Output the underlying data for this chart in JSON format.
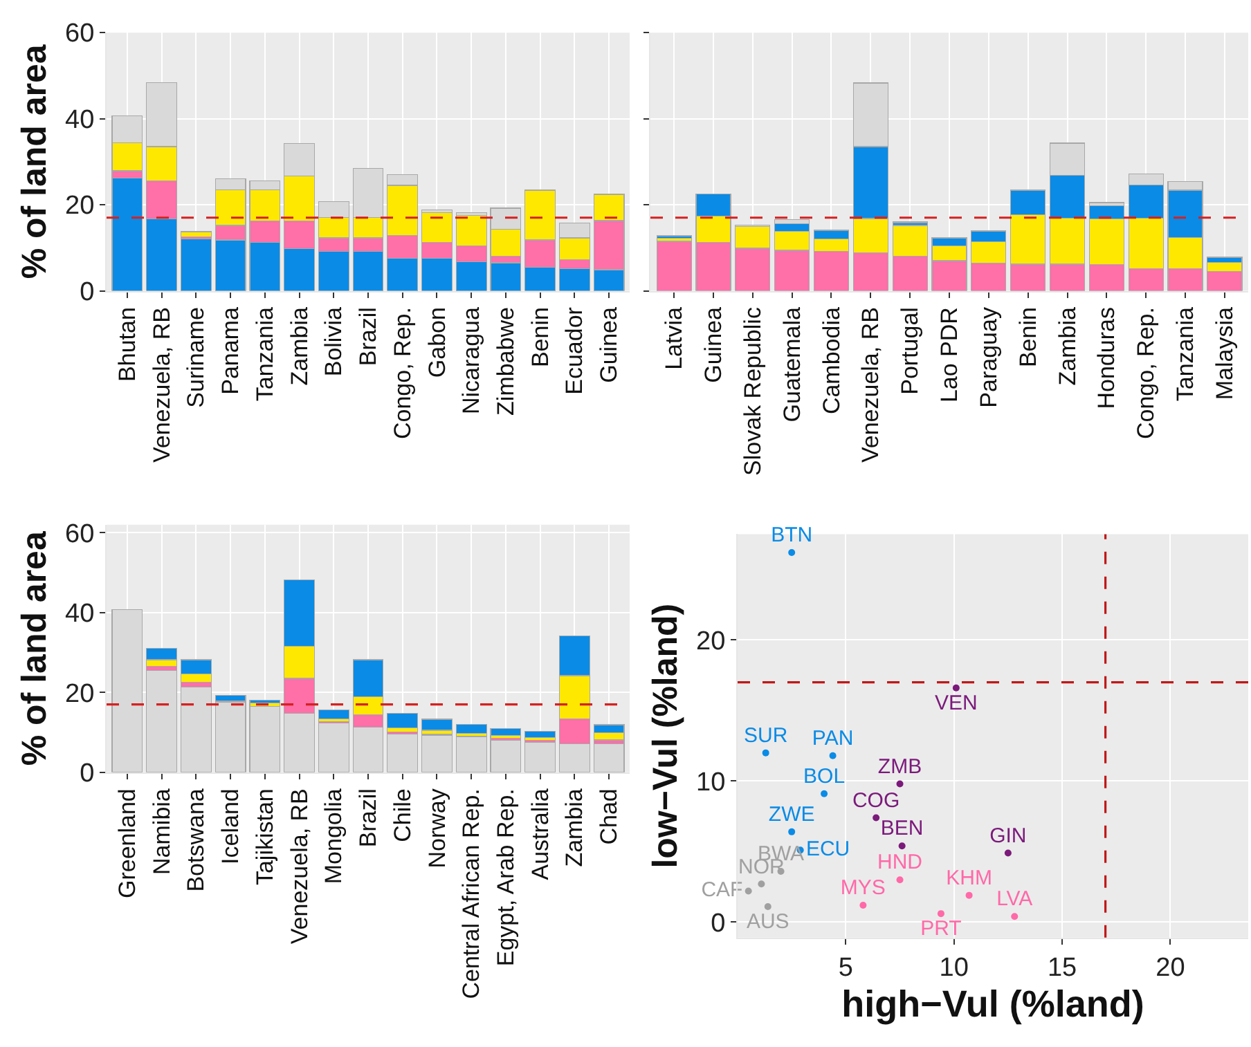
{
  "chart_data": [
    {
      "type": "bar",
      "stacked": true,
      "ylabel": "% of land area",
      "grid": true,
      "ylim": [
        0,
        60
      ],
      "yticks": [
        0,
        20,
        40,
        60
      ],
      "categories": [
        "Bhutan",
        "Venezuela, RB",
        "Suriname",
        "Panama",
        "Tanzania",
        "Zambia",
        "Bolivia",
        "Brazil",
        "Congo, Rep.",
        "Gabon",
        "Nicaragua",
        "Zimbabwe",
        "Benin",
        "Ecuador",
        "Guinea"
      ],
      "series": [
        {
          "color": "#0a8be6",
          "values": [
            26.2,
            16.7,
            12.0,
            11.8,
            11.2,
            9.8,
            9.2,
            9.2,
            7.5,
            7.5,
            6.8,
            6.5,
            5.5,
            5.1,
            4.9
          ]
        },
        {
          "color": "#ff6fa8",
          "values": [
            1.7,
            8.8,
            0.6,
            3.4,
            5.0,
            6.4,
            3.1,
            3.1,
            5.3,
            3.7,
            3.6,
            1.5,
            6.3,
            2.1,
            11.4
          ]
        },
        {
          "color": "#ffe800",
          "values": [
            6.5,
            8.0,
            1.0,
            8.3,
            7.3,
            10.5,
            4.8,
            4.8,
            11.7,
            7.0,
            7.1,
            6.3,
            11.5,
            5.1,
            6.1
          ]
        },
        {
          "color": "#d9d9d9",
          "values": [
            6.3,
            14.9,
            0.2,
            2.6,
            2.0,
            7.5,
            3.6,
            11.4,
            2.5,
            0.6,
            0.6,
            4.9,
            0.2,
            3.5,
            0.1
          ]
        }
      ],
      "ref_lines": [
        {
          "axis": "y",
          "value": 17,
          "color": "#d62020",
          "line_style": "dashed"
        }
      ]
    },
    {
      "type": "bar",
      "stacked": true,
      "grid": true,
      "ylim": [
        0,
        60
      ],
      "yticks": [
        {
          "value": 0,
          "label": null
        },
        {
          "value": 20,
          "label": null
        },
        {
          "value": 40,
          "label": null
        },
        {
          "value": 60,
          "label": null
        }
      ],
      "tick_labels": "x",
      "categories": [
        "Latvia",
        "Guinea",
        "Slovak Republic",
        "Guatemala",
        "Cambodia",
        "Venezuela, RB",
        "Portugal",
        "Lao PDR",
        "Paraguay",
        "Benin",
        "Zambia",
        "Honduras",
        "Congo, Rep.",
        "Tanzania",
        "Malaysia"
      ],
      "series": [
        {
          "color": "#ff6fa8",
          "values": [
            11.5,
            11.3,
            9.9,
            9.4,
            9.2,
            8.8,
            8.0,
            7.0,
            6.4,
            6.2,
            6.2,
            6.1,
            5.1,
            5.1,
            4.5
          ]
        },
        {
          "color": "#ffe800",
          "values": [
            0.7,
            6.0,
            5.1,
            4.4,
            2.8,
            8.0,
            7.2,
            3.4,
            5.0,
            11.5,
            10.7,
            10.6,
            11.8,
            7.3,
            2.1
          ]
        },
        {
          "color": "#0a8be6",
          "values": [
            0.5,
            5.2,
            null,
            1.8,
            2.0,
            16.7,
            0.6,
            1.8,
            2.4,
            5.7,
            10.0,
            3.1,
            7.7,
            11.0,
            1.2
          ]
        },
        {
          "color": "#d9d9d9",
          "values": [
            0.2,
            0,
            0.3,
            0.9,
            0.1,
            14.8,
            0.2,
            0.1,
            0.1,
            0.1,
            7.4,
            0.7,
            2.5,
            2.0,
            0.1
          ]
        }
      ],
      "ref_lines": [
        {
          "axis": "y",
          "value": 17,
          "color": "#d62020",
          "line_style": "dashed"
        }
      ]
    },
    {
      "type": "bar",
      "stacked": true,
      "ylabel": "% of land area",
      "grid": true,
      "ylim": [
        0,
        62
      ],
      "yticks": [
        0,
        20,
        40,
        60
      ],
      "categories": [
        "Greenland",
        "Namibia",
        "Botswana",
        "Iceland",
        "Tajikistan",
        "Venezuela, RB",
        "Mongolia",
        "Brazil",
        "Chile",
        "Norway",
        "Central African Rep.",
        "Egypt, Arab Rep.",
        "Australia",
        "Zambia",
        "Chad"
      ],
      "series": [
        {
          "color": "#d9d9d9",
          "values": [
            40.7,
            25.5,
            21.4,
            17.6,
            16.5,
            14.7,
            12.4,
            11.3,
            9.6,
            9.3,
            8.9,
            8.0,
            7.5,
            7.2,
            7.2
          ]
        },
        {
          "color": "#ff6fa8",
          "values": [
            0,
            1.1,
            1.1,
            0,
            0,
            8.8,
            0.3,
            3.1,
            0.5,
            0.2,
            0.1,
            0.5,
            0.5,
            6.2,
            0.9
          ]
        },
        {
          "color": "#ffe800",
          "values": [
            0,
            1.6,
            2.1,
            0.2,
            0.8,
            8.0,
            0.7,
            4.5,
            1.0,
            1.0,
            0.8,
            0.7,
            0.7,
            10.8,
            1.8
          ]
        },
        {
          "color": "#0a8be6",
          "values": [
            0,
            2.9,
            3.6,
            1.5,
            0.8,
            16.7,
            2.2,
            9.3,
            3.6,
            2.8,
            2.2,
            1.7,
            1.5,
            9.9,
            2.0
          ]
        }
      ],
      "ref_lines": [
        {
          "axis": "y",
          "value": 17,
          "color": "#d62020",
          "line_style": "dashed"
        }
      ]
    },
    {
      "type": "scatter",
      "marker": "circle",
      "xlabel": "high−Vul (%land)",
      "ylabel": "low−Vul (%land)",
      "grid": true,
      "xlim": [
        0,
        23.6
      ],
      "xticks": [
        5,
        10,
        15,
        20
      ],
      "ylim": [
        -1.1,
        27.5
      ],
      "yticks": [
        0,
        10,
        20
      ],
      "series": [
        {
          "color": "#0a8be6",
          "x": [
            2.5,
            1.3,
            4.4,
            4.0,
            2.5,
            2.9
          ],
          "values": [
            26.2,
            12.0,
            11.8,
            9.1,
            6.4,
            5.1
          ],
          "value_labels": [
            "BTN",
            "SUR",
            "PAN",
            "BOL",
            "ZWE",
            "ECU"
          ]
        },
        {
          "color": "#7b1a7b",
          "x": [
            10.1,
            7.5,
            6.4,
            7.6,
            12.5
          ],
          "values": [
            16.6,
            9.8,
            7.4,
            5.4,
            4.9
          ],
          "value_labels": [
            "VEN",
            "ZMB",
            "COG",
            "BEN",
            "GIN"
          ]
        },
        {
          "color": "#ff69a8",
          "x": [
            7.5,
            10.7,
            5.8,
            9.4,
            12.8
          ],
          "values": [
            3.0,
            1.9,
            1.2,
            0.6,
            0.4
          ],
          "value_labels": [
            "HND",
            "KHM",
            "MYS",
            "PRT",
            "LVA"
          ]
        },
        {
          "color": "#a0a0a0",
          "x": [
            2.0,
            1.1,
            0.5,
            1.4
          ],
          "values": [
            3.6,
            2.7,
            2.2,
            1.1
          ],
          "value_labels": [
            "BWA",
            "NOR",
            "CAF",
            "AUS"
          ]
        }
      ],
      "ref_lines": [
        {
          "axis": "x",
          "value": 17,
          "color": "#c01818",
          "line_style": "dashed"
        },
        {
          "axis": "y",
          "value": 17,
          "color": "#c01818",
          "line_style": "dashed"
        }
      ]
    }
  ]
}
